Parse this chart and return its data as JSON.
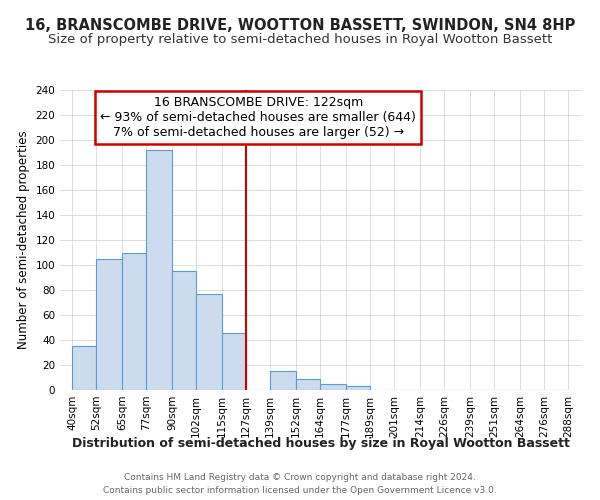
{
  "title": "16, BRANSCOMBE DRIVE, WOOTTON BASSETT, SWINDON, SN4 8HP",
  "subtitle": "Size of property relative to semi-detached houses in Royal Wootton Bassett",
  "xlabel": "Distribution of semi-detached houses by size in Royal Wootton Bassett",
  "ylabel": "Number of semi-detached properties",
  "footer1": "Contains HM Land Registry data © Crown copyright and database right 2024.",
  "footer2": "Contains public sector information licensed under the Open Government Licence v3.0.",
  "annotation_title": "16 BRANSCOMBE DRIVE: 122sqm",
  "annotation_line2": "← 93% of semi-detached houses are smaller (644)",
  "annotation_line3": "7% of semi-detached houses are larger (52) →",
  "property_line_x": 127,
  "bar_left_edges": [
    40,
    52,
    65,
    77,
    90,
    102,
    115,
    127,
    139,
    152,
    164,
    177,
    189,
    201,
    214,
    226,
    239,
    251,
    264,
    276
  ],
  "bar_widths": [
    12,
    13,
    12,
    13,
    12,
    13,
    12,
    12,
    13,
    12,
    13,
    12,
    12,
    13,
    12,
    13,
    12,
    13,
    12,
    12
  ],
  "bar_heights": [
    35,
    105,
    110,
    192,
    95,
    77,
    46,
    0,
    15,
    9,
    5,
    3,
    0,
    0,
    0,
    0,
    0,
    0,
    0,
    0
  ],
  "bar_color": "#ccdcee",
  "bar_edge_color": "#5b9bd5",
  "annotation_box_color": "#ffffff",
  "annotation_border_color": "#cc0000",
  "line_color": "#cc0000",
  "title_fontsize": 10.5,
  "subtitle_fontsize": 9.5,
  "ylabel_fontsize": 8.5,
  "xlabel_fontsize": 9,
  "tick_fontsize": 7.5,
  "annotation_fontsize": 9,
  "ylim": [
    0,
    240
  ],
  "yticks": [
    0,
    20,
    40,
    60,
    80,
    100,
    120,
    140,
    160,
    180,
    200,
    220,
    240
  ],
  "xlim_left": 34,
  "xlim_right": 295,
  "background_color": "#ffffff",
  "grid_color": "#d0d0d0",
  "all_xtick_positions": [
    40,
    52,
    65,
    77,
    90,
    102,
    115,
    127,
    139,
    152,
    164,
    177,
    189,
    201,
    214,
    226,
    239,
    251,
    264,
    276,
    288
  ],
  "all_xtick_labels": [
    "40sqm",
    "52sqm",
    "65sqm",
    "77sqm",
    "90sqm",
    "102sqm",
    "115sqm",
    "127sqm",
    "139sqm",
    "152sqm",
    "164sqm",
    "177sqm",
    "189sqm",
    "201sqm",
    "214sqm",
    "226sqm",
    "239sqm",
    "251sqm",
    "264sqm",
    "276sqm",
    "288sqm"
  ]
}
